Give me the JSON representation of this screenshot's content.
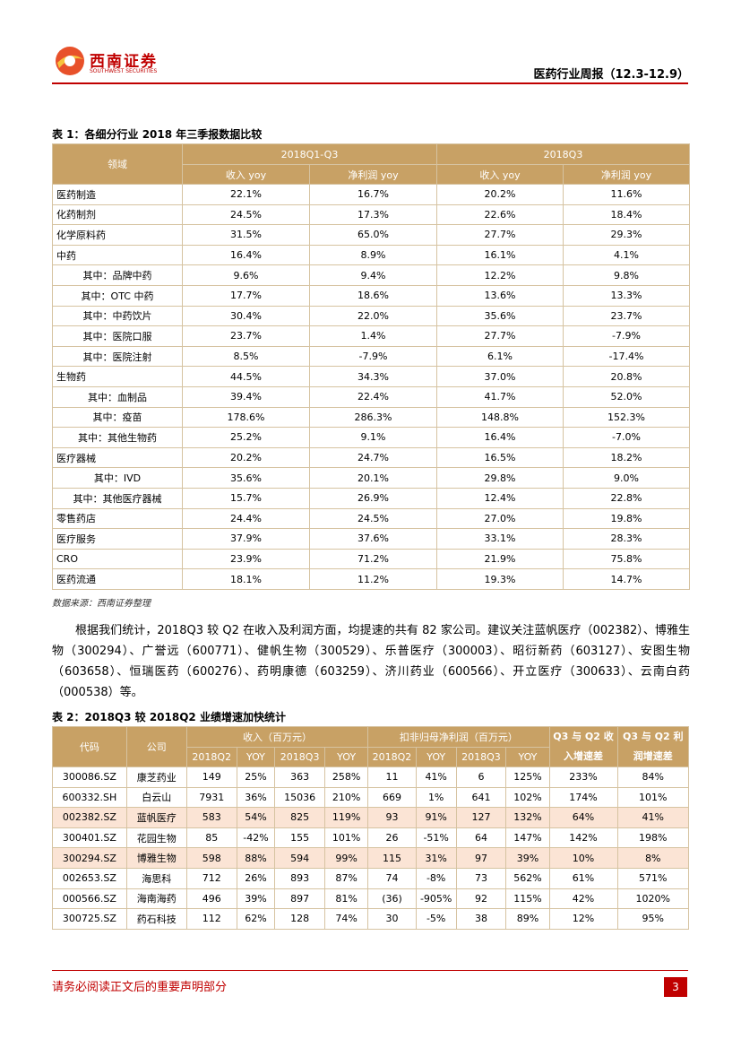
{
  "header": {
    "logo_cn": "西南证券",
    "logo_en": "SOUTHWEST SECURITIES",
    "report_title": "医药行业周报（12.3-12.9）"
  },
  "table1": {
    "caption": "表 1：各细分行业 2018 年三季报数据比较",
    "corner": "领域",
    "groups": [
      "2018Q1-Q3",
      "2018Q3"
    ],
    "subheaders": [
      "收入 yoy",
      "净利润 yoy",
      "收入 yoy",
      "净利润 yoy"
    ],
    "rows": [
      {
        "label": "医药制造",
        "cells": [
          "22.1%",
          "16.7%",
          "20.2%",
          "11.6%"
        ]
      },
      {
        "label": "化药制剂",
        "cells": [
          "24.5%",
          "17.3%",
          "22.6%",
          "18.4%"
        ]
      },
      {
        "label": "化学原料药",
        "cells": [
          "31.5%",
          "65.0%",
          "27.7%",
          "29.3%"
        ]
      },
      {
        "label": "中药",
        "cells": [
          "16.4%",
          "8.9%",
          "16.1%",
          "4.1%"
        ]
      },
      {
        "label": "其中：品牌中药",
        "sub": true,
        "cells": [
          "9.6%",
          "9.4%",
          "12.2%",
          "9.8%"
        ]
      },
      {
        "label": "其中：OTC 中药",
        "sub": true,
        "cells": [
          "17.7%",
          "18.6%",
          "13.6%",
          "13.3%"
        ]
      },
      {
        "label": "其中：中药饮片",
        "sub": true,
        "cells": [
          "30.4%",
          "22.0%",
          "35.6%",
          "23.7%"
        ]
      },
      {
        "label": "其中：医院口服",
        "sub": true,
        "cells": [
          "23.7%",
          "1.4%",
          "27.7%",
          "-7.9%"
        ]
      },
      {
        "label": "其中：医院注射",
        "sub": true,
        "cells": [
          "8.5%",
          "-7.9%",
          "6.1%",
          "-17.4%"
        ]
      },
      {
        "label": "生物药",
        "cells": [
          "44.5%",
          "34.3%",
          "37.0%",
          "20.8%"
        ]
      },
      {
        "label": "其中：血制品",
        "sub": true,
        "cells": [
          "39.4%",
          "22.4%",
          "41.7%",
          "52.0%"
        ]
      },
      {
        "label": "其中：疫苗",
        "sub": true,
        "cells": [
          "178.6%",
          "286.3%",
          "148.8%",
          "152.3%"
        ]
      },
      {
        "label": "其中：其他生物药",
        "sub": true,
        "cells": [
          "25.2%",
          "9.1%",
          "16.4%",
          "-7.0%"
        ]
      },
      {
        "label": "医疗器械",
        "cells": [
          "20.2%",
          "24.7%",
          "16.5%",
          "18.2%"
        ]
      },
      {
        "label": "其中：IVD",
        "sub": true,
        "cells": [
          "35.6%",
          "20.1%",
          "29.8%",
          "9.0%"
        ]
      },
      {
        "label": "其中：其他医疗器械",
        "sub": true,
        "cells": [
          "15.7%",
          "26.9%",
          "12.4%",
          "22.8%"
        ]
      },
      {
        "label": "零售药店",
        "cells": [
          "24.4%",
          "24.5%",
          "27.0%",
          "19.8%"
        ]
      },
      {
        "label": "医疗服务",
        "cells": [
          "37.9%",
          "37.6%",
          "33.1%",
          "28.3%"
        ]
      },
      {
        "label": "CRO",
        "cells": [
          "23.9%",
          "71.2%",
          "21.9%",
          "75.8%"
        ]
      },
      {
        "label": "医药流通",
        "cells": [
          "18.1%",
          "11.2%",
          "19.3%",
          "14.7%"
        ]
      }
    ],
    "source": "数据来源：西南证券整理"
  },
  "paragraph": "根据我们统计，2018Q3 较 Q2 在收入及利润方面，均提速的共有 82 家公司。建议关注蓝帆医疗（002382）、博雅生物（300294）、广誉远（600771）、健帆生物（300529）、乐普医疗（300003）、昭衍新药（603127）、安图生物（603658）、恒瑞医药（600276）、药明康德（603259）、济川药业（600566）、开立医疗（300633）、云南白药（000538）等。",
  "table2": {
    "caption": "表 2：2018Q3 较 2018Q2 业绩增速加快统计",
    "code": "代码",
    "company": "公司",
    "groups": [
      "收入（百万元）",
      "扣非归母净利润（百万元）"
    ],
    "diff_headers": [
      "Q3 与 Q2 收入增速差",
      "Q3 与 Q2 利润增速差"
    ],
    "subheaders": [
      "2018Q2",
      "YOY",
      "2018Q3",
      "YOY",
      "2018Q2",
      "YOY",
      "2018Q3",
      "YOY"
    ],
    "highlight_color": "#fbe4d5",
    "rows": [
      {
        "cells": [
          "300086.SZ",
          "康芝药业",
          "149",
          "25%",
          "363",
          "258%",
          "11",
          "41%",
          "6",
          "125%",
          "233%",
          "84%"
        ]
      },
      {
        "cells": [
          "600332.SH",
          "白云山",
          "7931",
          "36%",
          "15036",
          "210%",
          "669",
          "1%",
          "641",
          "102%",
          "174%",
          "101%"
        ]
      },
      {
        "cells": [
          "002382.SZ",
          "蓝帆医疗",
          "583",
          "54%",
          "825",
          "119%",
          "93",
          "91%",
          "127",
          "132%",
          "64%",
          "41%"
        ],
        "highlight": true
      },
      {
        "cells": [
          "300401.SZ",
          "花园生物",
          "85",
          "-42%",
          "155",
          "101%",
          "26",
          "-51%",
          "64",
          "147%",
          "142%",
          "198%"
        ]
      },
      {
        "cells": [
          "300294.SZ",
          "博雅生物",
          "598",
          "88%",
          "594",
          "99%",
          "115",
          "31%",
          "97",
          "39%",
          "10%",
          "8%"
        ],
        "highlight": true
      },
      {
        "cells": [
          "002653.SZ",
          "海思科",
          "712",
          "26%",
          "893",
          "87%",
          "74",
          "-8%",
          "73",
          "562%",
          "61%",
          "571%"
        ]
      },
      {
        "cells": [
          "000566.SZ",
          "海南海药",
          "496",
          "39%",
          "897",
          "81%",
          "(36)",
          "-905%",
          "92",
          "115%",
          "42%",
          "1020%"
        ]
      },
      {
        "cells": [
          "300725.SZ",
          "药石科技",
          "112",
          "62%",
          "128",
          "74%",
          "30",
          "-5%",
          "38",
          "89%",
          "12%",
          "95%"
        ]
      }
    ]
  },
  "footer": {
    "disclaimer": "请务必阅读正文后的重要声明部分",
    "page": "3"
  }
}
